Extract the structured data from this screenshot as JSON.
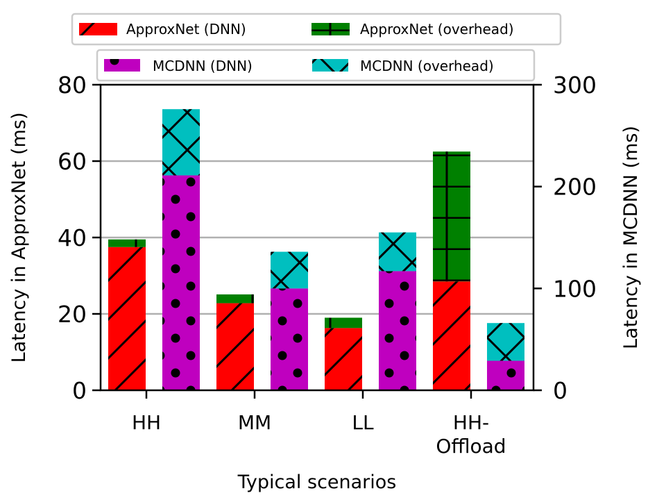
{
  "chart_data": {
    "type": "bar",
    "xlabel": "Typical scenarios",
    "ylabel_left": "Latency in ApproxNet (ms)",
    "ylabel_right": "Latency in MCDNN (ms)",
    "categories": [
      [
        "HH"
      ],
      [
        "MM"
      ],
      [
        "LL"
      ],
      [
        "HH-",
        "Offload"
      ]
    ],
    "left_axis": {
      "ylim": [
        0,
        80
      ],
      "ticks": [
        "0",
        "20",
        "40",
        "60",
        "80"
      ],
      "tick_values": [
        0,
        20,
        40,
        60,
        80
      ]
    },
    "right_axis": {
      "ylim": [
        0,
        300
      ],
      "ticks": [
        "0",
        "100",
        "200",
        "300"
      ],
      "tick_values": [
        0,
        100,
        200,
        300
      ]
    },
    "grid": "horizontal at left-axis ticks",
    "series": [
      {
        "name": "ApproxNet (DNN)",
        "axis": "left",
        "stack": "ApproxNet",
        "color": "#ff0000",
        "hatch": "slash",
        "values": [
          37.5,
          22.8,
          16.3,
          28.5
        ]
      },
      {
        "name": "ApproxNet (overhead)",
        "axis": "left",
        "stack": "ApproxNet",
        "color": "#008000",
        "hatch": "plus",
        "values": [
          2.0,
          2.3,
          2.7,
          34.0
        ]
      },
      {
        "name": "MCDNN (DNN)",
        "axis": "right",
        "stack": "MCDNN",
        "color": "#bf00bf",
        "hatch": "dots",
        "values": [
          211,
          100,
          117,
          29
        ]
      },
      {
        "name": "MCDNN (overhead)",
        "axis": "right",
        "stack": "MCDNN",
        "color": "#00bfbf",
        "hatch": "x",
        "values": [
          65,
          36,
          38,
          37
        ]
      }
    ],
    "legend": {
      "position": "top",
      "rows": [
        [
          "ApproxNet (DNN)",
          "ApproxNet (overhead)"
        ],
        [
          "MCDNN (DNN)",
          "MCDNN (overhead)"
        ]
      ]
    }
  }
}
